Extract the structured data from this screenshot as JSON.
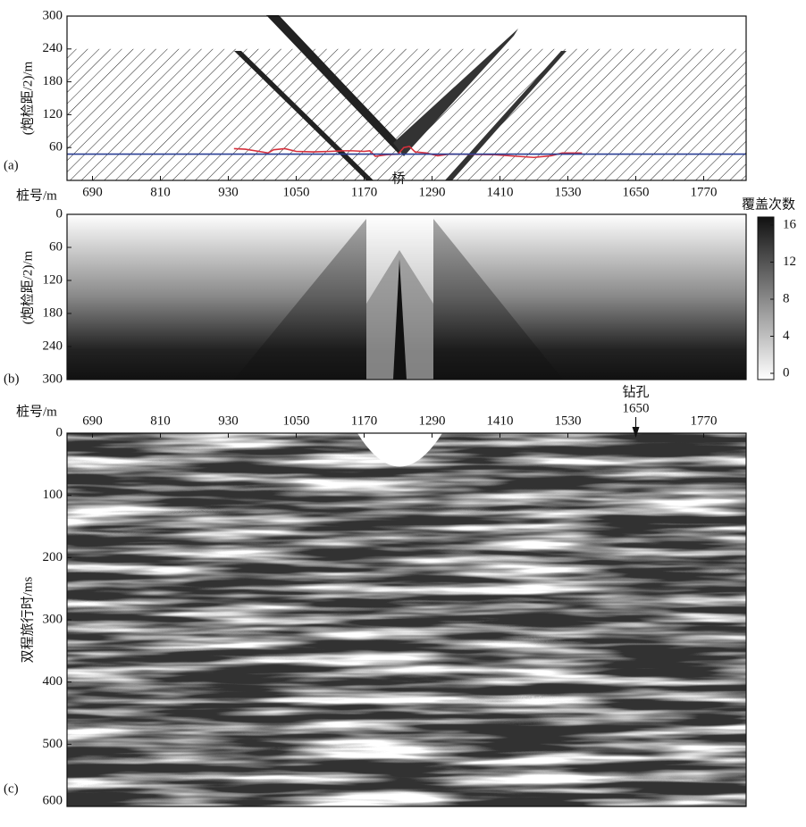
{
  "chart_data": [
    {
      "type": "line",
      "panel_label": "(a)",
      "ylabel": "(炮检距/2)/m",
      "xlabel": "桩号/m",
      "annotation": "桥",
      "xlim": [
        645,
        1845
      ],
      "xticks": [
        690,
        810,
        930,
        1050,
        1170,
        1290,
        1410,
        1530,
        1650,
        1770
      ],
      "ylim": [
        0,
        300
      ],
      "yticks": [
        60,
        120,
        180,
        240,
        300
      ],
      "hatch_top": 240,
      "series": [
        {
          "color": "#d6303c",
          "x": [
            940,
            960,
            990,
            1000,
            1010,
            1030,
            1050,
            1080,
            1110,
            1130,
            1150,
            1170,
            1180,
            1190,
            1210,
            1230,
            1240,
            1250,
            1260,
            1280,
            1300,
            1320,
            1400,
            1440,
            1470,
            1500,
            1520,
            1555
          ],
          "values": [
            58,
            57,
            52,
            50,
            56,
            58,
            53,
            52,
            53,
            54,
            54,
            53,
            54,
            44,
            47,
            48,
            60,
            62,
            52,
            50,
            45,
            48,
            47,
            44,
            42,
            45,
            50,
            50
          ]
        },
        {
          "color": "#2a3f94",
          "x": [
            645,
            1845
          ],
          "values": [
            48,
            48
          ]
        }
      ]
    },
    {
      "type": "heatmap",
      "panel_label": "(b)",
      "ylabel": "(炮检距/2)/m",
      "ylim": [
        0,
        300
      ],
      "yticks": [
        0,
        60,
        120,
        180,
        240,
        300
      ],
      "colorbar_title": "覆盖次数",
      "clim": [
        0,
        16
      ],
      "cticks": [
        0,
        4,
        8,
        12,
        16
      ]
    },
    {
      "type": "seismic",
      "panel_label": "(c)",
      "xlabel": "桩号/m",
      "ylabel": "双程旅行时/ms",
      "xlim": [
        645,
        1845
      ],
      "xticks": [
        690,
        810,
        930,
        1050,
        1170,
        1290,
        1410,
        1530,
        1770
      ],
      "ylim": [
        0,
        600
      ],
      "yticks": [
        0,
        100,
        200,
        300,
        400,
        500,
        600
      ],
      "annotation": {
        "text": "钻孔",
        "x": 1650
      }
    }
  ]
}
